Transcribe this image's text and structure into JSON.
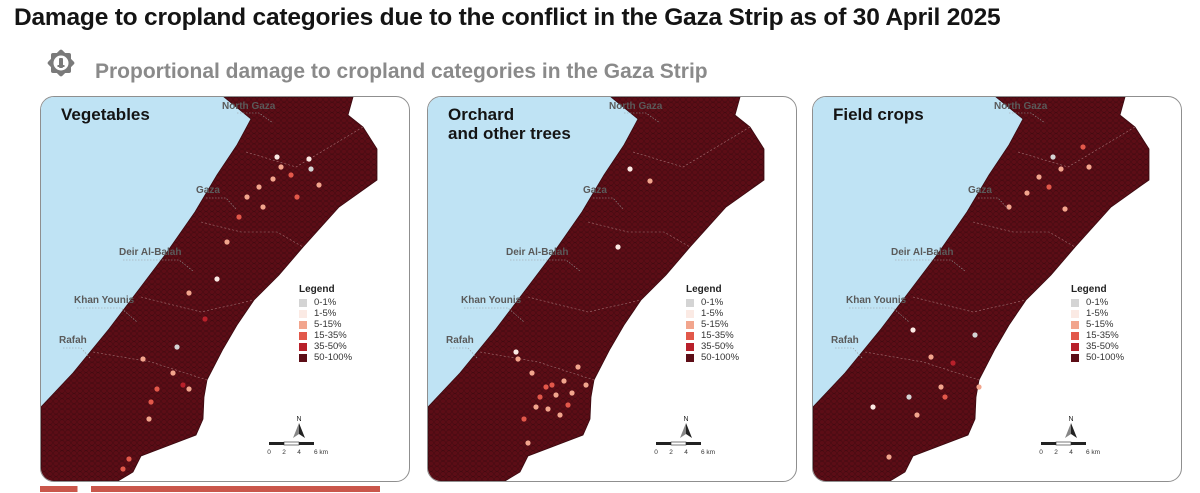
{
  "header": {
    "title": "Damage to cropland categories due to the conflict in the Gaza Strip as of 30 April 2025",
    "subtitle": "Proportional damage to cropland categories in the Gaza Strip"
  },
  "emblem": {
    "icon": "octagonal-star-emblem-icon",
    "color": "#7a7a7a"
  },
  "colors": {
    "sea": "#bfe3f4",
    "land_outside": "#ffffff",
    "map_border": "#8f8f8f"
  },
  "governorates": [
    "North Gaza",
    "Gaza",
    "Deir Al-Balah",
    "Khan Younis",
    "Rafah"
  ],
  "legend": {
    "title": "Legend",
    "items": [
      {
        "label": "0-1%",
        "color": "#d4d4d4"
      },
      {
        "label": "1-5%",
        "color": "#fbeae4"
      },
      {
        "label": "5-15%",
        "color": "#f2a58d"
      },
      {
        "label": "15-35%",
        "color": "#e2584a"
      },
      {
        "label": "35-50%",
        "color": "#b8202a"
      },
      {
        "label": "50-100%",
        "color": "#5c0d16"
      }
    ]
  },
  "scale": {
    "ticks": [
      "0",
      "2",
      "4",
      "6 km"
    ],
    "north": "N"
  },
  "panels": [
    {
      "title_line1": "Vegetables",
      "title_line2": ""
    },
    {
      "title_line1": "Orchard",
      "title_line2": "and other trees"
    },
    {
      "title_line1": "Field crops",
      "title_line2": ""
    }
  ]
}
